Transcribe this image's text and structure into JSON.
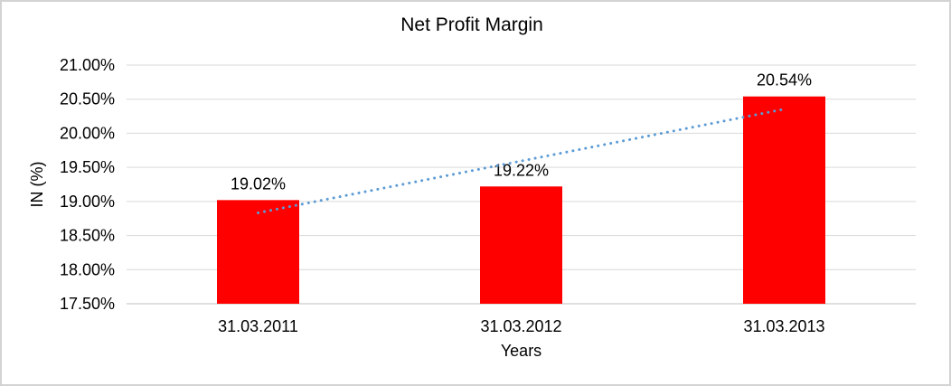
{
  "window": {
    "background": "#FFFFFF",
    "border_color": "#D3D3D3"
  },
  "chart_data": {
    "type": "bar",
    "title": "Net Profit Margin",
    "xlabel": "Years",
    "ylabel": "IN (%)",
    "categories": [
      "31.03.2011",
      "31.03.2012",
      "31.03.2013"
    ],
    "values": [
      19.02,
      19.22,
      20.54
    ],
    "data_labels": [
      "19.02%",
      "19.22%",
      "20.54%"
    ],
    "ylim": [
      17.5,
      21.0
    ],
    "ytick_step": 0.5,
    "ytick_labels": [
      "17.50%",
      "18.00%",
      "18.50%",
      "19.00%",
      "19.50%",
      "20.00%",
      "20.50%",
      "21.00%"
    ],
    "grid": true,
    "legend": "none",
    "bar_color": "#FF0000",
    "text_color": "#000000",
    "gridline_color": "#D9D9D9",
    "axis_line_color": "#BFBFBF",
    "trendline": {
      "type": "linear",
      "style": "dotted",
      "color": "#5B9BD5"
    }
  }
}
